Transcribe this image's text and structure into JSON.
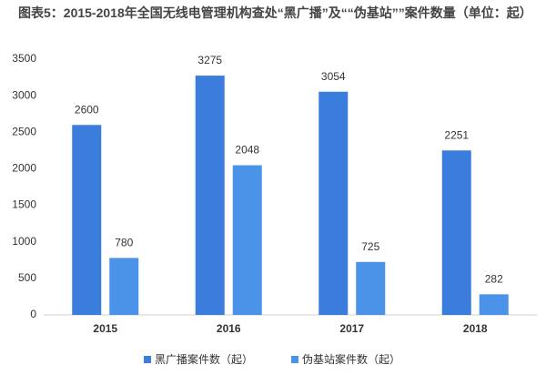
{
  "chart_data": {
    "type": "bar",
    "title": "图表5：2015-2018年全国无线电管理机构查处“黑广播”及““伪基站””案件数量（单位：起）",
    "categories": [
      "2015",
      "2016",
      "2017",
      "2018"
    ],
    "series": [
      {
        "name": "黑广播案件数（起）",
        "color": "#3b7ddd",
        "values": [
          2600,
          3275,
          3054,
          2251
        ]
      },
      {
        "name": "伪基站案件数（起）",
        "color": "#4a93e8",
        "values": [
          780,
          2048,
          725,
          282
        ]
      }
    ],
    "ylim": [
      0,
      3500
    ],
    "yticks": [
      0,
      500,
      1000,
      1500,
      2000,
      2500,
      3000,
      3500
    ],
    "grid": false
  }
}
